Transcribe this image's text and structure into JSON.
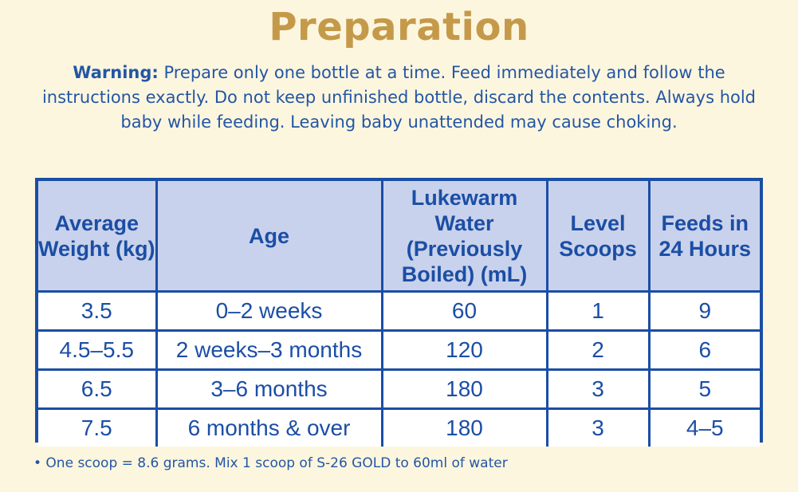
{
  "title": "Preparation",
  "warning": {
    "label": "Warning:",
    "text": " Prepare only  one bottle at a time. Feed immediately and follow the instructions exactly. Do not keep unfinished bottle, discard the contents. Always hold baby while feeding. Leaving baby unattended may cause choking."
  },
  "table": {
    "headers": [
      "Average Weight (kg)",
      "Age",
      "Lukewarm Water (Previously Boiled) (mL)",
      "Level Scoops",
      "Feeds in 24 Hours"
    ],
    "rows": [
      [
        "3.5",
        "0–2 weeks",
        "60",
        "1",
        "9"
      ],
      [
        "4.5–5.5",
        "2 weeks–3 months",
        "120",
        "2",
        "6"
      ],
      [
        "6.5",
        "3–6 months",
        "180",
        "3",
        "5"
      ],
      [
        "7.5",
        "6 months & over",
        "180",
        "3",
        "4–5"
      ]
    ]
  },
  "footnote": "• One scoop = 8.6 grams. Mix 1 scoop of S-26 GOLD to 60ml of water",
  "colors": {
    "background": "#fdf6df",
    "title": "#c49a4a",
    "text_blue": "#2356a4",
    "table_border": "#1b4ea5",
    "header_fill": "#c9d2ec"
  }
}
